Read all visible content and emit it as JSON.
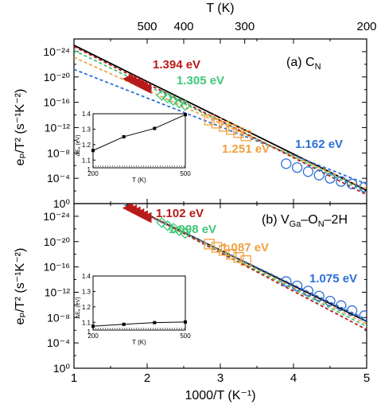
{
  "figure": {
    "top_axis_label": "T (K)",
    "top_ticks": [
      {
        "value": 500,
        "label": "500"
      },
      {
        "value": 400,
        "label": "400"
      },
      {
        "value": 300,
        "label": "300"
      },
      {
        "value": 200,
        "label": "200"
      }
    ],
    "bottom_axis_label": "1000/T (K⁻¹)",
    "bottom_ticks": [
      "1",
      "2",
      "3",
      "4",
      "5"
    ],
    "y_axis_label": "eₚ/T² (s⁻¹K⁻²)",
    "y_ticks": [
      "10⁰",
      "10⁻⁴",
      "10⁻⁸",
      "10⁻¹²",
      "10⁻¹⁶",
      "10⁻²⁰",
      "10⁻²⁴"
    ]
  },
  "chart_data": [
    {
      "type": "scatter",
      "panel_label": "(a) C",
      "panel_label_sub": "N",
      "x_axis": {
        "label": "1000/T (K⁻¹)",
        "range": [
          1,
          5
        ]
      },
      "y_axis": {
        "label": "eₚ/T² (s⁻¹K⁻²)",
        "scale": "log",
        "range_exponent": [
          -24,
          2
        ]
      },
      "fits": [
        {
          "color": "#000000",
          "style": "solid",
          "points": [
            [
              1,
              1.0
            ],
            [
              5,
              -21.9
            ]
          ]
        },
        {
          "color": "#2b6fd6",
          "style": "dashed",
          "points": [
            [
              1,
              -2.8
            ],
            [
              5,
              -20.9
            ]
          ]
        },
        {
          "color": "#f0a040",
          "style": "dashed",
          "points": [
            [
              1,
              -0.9
            ],
            [
              5,
              -21.7
            ]
          ]
        },
        {
          "color": "#3ec878",
          "style": "dashed",
          "points": [
            [
              1,
              0.2
            ],
            [
              5,
              -22.2
            ]
          ]
        },
        {
          "color": "#b81a1a",
          "style": "dashed",
          "points": [
            [
              1,
              0.8
            ],
            [
              5,
              -22.6
            ]
          ]
        }
      ],
      "series": [
        {
          "label": "1.394 eV",
          "color": "#b81a1a",
          "marker": "triangle-left",
          "points": [
            [
              1.75,
              -4.3
            ],
            [
              1.8,
              -4.6
            ],
            [
              1.85,
              -4.9
            ],
            [
              1.9,
              -5.2
            ],
            [
              1.95,
              -5.5
            ],
            [
              2.0,
              -5.8
            ]
          ]
        },
        {
          "label": "1.305 eV",
          "color": "#3ec878",
          "marker": "diamond",
          "points": [
            [
              2.2,
              -6.9
            ],
            [
              2.28,
              -7.3
            ],
            [
              2.36,
              -7.7
            ],
            [
              2.44,
              -8.1
            ],
            [
              2.52,
              -8.5
            ]
          ]
        },
        {
          "label": "1.251 eV",
          "color": "#f0a040",
          "marker": "square",
          "points": [
            [
              2.85,
              -10.8
            ],
            [
              2.95,
              -11.3
            ],
            [
              3.05,
              -11.8
            ],
            [
              3.15,
              -12.3
            ],
            [
              3.25,
              -12.8
            ],
            [
              3.35,
              -13.3
            ]
          ]
        },
        {
          "label": "1.162 eV",
          "color": "#2b6fd6",
          "marker": "circle",
          "points": [
            [
              3.9,
              -17.7
            ],
            [
              4.05,
              -18.3
            ],
            [
              4.2,
              -18.95
            ],
            [
              4.35,
              -19.5
            ],
            [
              4.5,
              -20.0
            ],
            [
              4.65,
              -20.5
            ],
            [
              4.8,
              -20.9
            ],
            [
              4.97,
              -21.4
            ]
          ]
        }
      ],
      "inset": {
        "x_axis": {
          "label": "T (K)",
          "range": [
            200,
            500
          ],
          "ticks": [
            "200",
            "500"
          ]
        },
        "y_axis": {
          "label": "ΔEₐ (eV)",
          "range": [
            1.05,
            1.4
          ],
          "ticks": [
            "1.4",
            "1.3",
            "1.2",
            "1.1",
            "1"
          ]
        },
        "points": [
          [
            200,
            1.162
          ],
          [
            300,
            1.251
          ],
          [
            400,
            1.305
          ],
          [
            500,
            1.394
          ]
        ],
        "reference_level": 1.06
      }
    },
    {
      "type": "scatter",
      "panel_label": "(b) V",
      "panel_label_sub": "Ga",
      "panel_label_rest": "–O",
      "panel_label_sub2": "N",
      "panel_label_tail": "–2H",
      "x_axis": {
        "label": "1000/T (K⁻¹)",
        "range": [
          1,
          5
        ]
      },
      "y_axis": {
        "label": "eₚ/T² (s⁻¹K⁻²)",
        "scale": "log",
        "range_exponent": [
          -24,
          2
        ]
      },
      "fits": [
        {
          "color": "#000000",
          "style": "solid",
          "points": [
            [
              1,
              5.9
            ],
            [
              5,
              -16.6
            ]
          ]
        },
        {
          "color": "#2b6fd6",
          "style": "dashed",
          "points": [
            [
              1,
              5.6
            ],
            [
              5,
              -16.3
            ]
          ]
        },
        {
          "color": "#f0a040",
          "style": "dashed",
          "points": [
            [
              1,
              6.0
            ],
            [
              5,
              -17.0
            ]
          ]
        },
        {
          "color": "#3ec878",
          "style": "dashed",
          "points": [
            [
              1,
              6.2
            ],
            [
              5,
              -17.4
            ]
          ]
        },
        {
          "color": "#b81a1a",
          "style": "dashed",
          "points": [
            [
              1,
              6.4
            ],
            [
              5,
              -17.9
            ]
          ]
        }
      ],
      "series": [
        {
          "label": "1.102 eV",
          "color": "#b81a1a",
          "marker": "triangle-left",
          "points": [
            [
              1.75,
              1.3
            ],
            [
              1.8,
              1.0
            ],
            [
              1.85,
              0.7
            ],
            [
              1.9,
              0.4
            ],
            [
              1.95,
              0.1
            ],
            [
              2.0,
              -0.2
            ]
          ]
        },
        {
          "label": "1.098 eV",
          "color": "#3ec878",
          "marker": "diamond",
          "points": [
            [
              2.2,
              -1.0
            ],
            [
              2.28,
              -1.5
            ],
            [
              2.36,
              -1.9
            ],
            [
              2.44,
              -2.3
            ],
            [
              2.52,
              -2.7
            ]
          ]
        },
        {
          "label": "1.087 eV",
          "color": "#f0a040",
          "marker": "square",
          "points": [
            [
              2.85,
              -4.4
            ],
            [
              2.95,
              -4.9
            ],
            [
              3.05,
              -5.4
            ],
            [
              3.15,
              -6.0
            ],
            [
              3.25,
              -6.5
            ],
            [
              3.35,
              -7.0
            ]
          ]
        },
        {
          "label": "1.075 eV",
          "color": "#2b6fd6",
          "marker": "circle",
          "points": [
            [
              3.9,
              -10.3
            ],
            [
              4.05,
              -11.0
            ],
            [
              4.2,
              -11.8
            ],
            [
              4.35,
              -12.6
            ],
            [
              4.5,
              -13.4
            ],
            [
              4.65,
              -14.1
            ],
            [
              4.8,
              -14.9
            ],
            [
              4.97,
              -15.7
            ]
          ]
        }
      ],
      "inset": {
        "x_axis": {
          "label": "T (K)",
          "range": [
            200,
            500
          ],
          "ticks": [
            "200",
            "500"
          ]
        },
        "y_axis": {
          "label": "ΔEₐ (eV)",
          "range": [
            1.05,
            1.4
          ],
          "ticks": [
            "1.4",
            "1.3",
            "1.2",
            "1.1",
            "1"
          ]
        },
        "points": [
          [
            200,
            1.075
          ],
          [
            300,
            1.087
          ],
          [
            400,
            1.098
          ],
          [
            500,
            1.102
          ]
        ],
        "reference_level": 1.06
      }
    }
  ]
}
